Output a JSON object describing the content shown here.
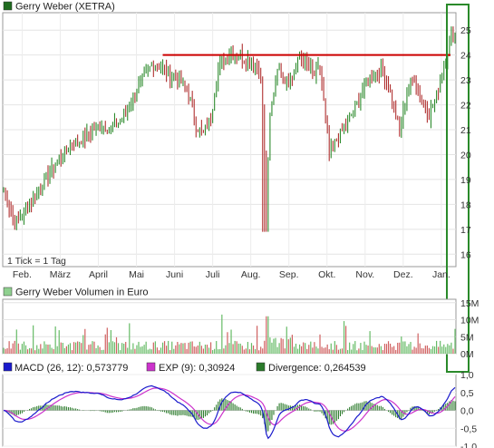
{
  "chart_data": [
    {
      "type": "candlestick",
      "title": "Gerry Weber (XETRA)",
      "legend_swatch_color": "#1f6b1f",
      "note": "1 Tick = 1 Tag",
      "months": [
        "Feb.",
        "März",
        "April",
        "Mai",
        "Juni",
        "Juli",
        "Aug.",
        "Sep.",
        "Okt.",
        "Nov.",
        "Dez.",
        "Jan."
      ],
      "y_ticks": [
        16,
        17,
        18,
        19,
        20,
        21,
        22,
        23,
        24,
        25
      ],
      "ylim": [
        15.5,
        25.7
      ],
      "resistance_level": 24.0,
      "colors": {
        "up": "#2e8b2e",
        "down": "#b03030",
        "resistance": "#cc0000",
        "highlight": "#2a8a2a"
      },
      "anchors": [
        [
          0,
          18.6
        ],
        [
          6,
          17.2
        ],
        [
          12,
          17.8
        ],
        [
          20,
          18.7
        ],
        [
          28,
          19.6
        ],
        [
          36,
          20.4
        ],
        [
          44,
          20.7
        ],
        [
          52,
          21.2
        ],
        [
          58,
          21.0
        ],
        [
          64,
          21.4
        ],
        [
          72,
          22.6
        ],
        [
          80,
          23.6
        ],
        [
          86,
          23.5
        ],
        [
          90,
          23.2
        ],
        [
          96,
          22.9
        ],
        [
          100,
          22.4
        ],
        [
          104,
          21.2
        ],
        [
          108,
          20.8
        ],
        [
          112,
          21.5
        ],
        [
          116,
          23.5
        ],
        [
          122,
          24.1
        ],
        [
          128,
          24.0
        ],
        [
          134,
          23.7
        ],
        [
          138,
          23.5
        ],
        [
          140,
          22.0
        ],
        [
          142,
          17.8
        ],
        [
          144,
          21.5
        ],
        [
          148,
          23.6
        ],
        [
          152,
          23.0
        ],
        [
          156,
          23.1
        ],
        [
          160,
          23.9
        ],
        [
          164,
          23.6
        ],
        [
          168,
          23.2
        ],
        [
          171,
          23.5
        ],
        [
          176,
          20.0
        ],
        [
          180,
          20.6
        ],
        [
          186,
          21.3
        ],
        [
          192,
          22.2
        ],
        [
          196,
          23.0
        ],
        [
          200,
          23.2
        ],
        [
          204,
          23.4
        ],
        [
          208,
          22.7
        ],
        [
          212,
          21.6
        ],
        [
          214,
          20.9
        ],
        [
          218,
          22.6
        ],
        [
          222,
          23.1
        ],
        [
          226,
          22.2
        ],
        [
          230,
          21.6
        ],
        [
          234,
          22.4
        ],
        [
          238,
          23.6
        ],
        [
          242,
          24.8
        ]
      ]
    },
    {
      "type": "bar",
      "title": "Gerry Weber Volumen in Euro",
      "legend_swatch_color": "#8fd08f",
      "y_ticks": [
        "15M",
        "10M",
        "5M",
        "0M"
      ],
      "tick_values": [
        15,
        10,
        5,
        0
      ],
      "ylim": [
        0,
        16
      ]
    },
    {
      "type": "line",
      "series": [
        {
          "name": "MACD (26, 12): 0,573779",
          "color": "#1a1acc"
        },
        {
          "name": "EXP (9): 0,30924",
          "color": "#cc33cc"
        },
        {
          "name": "Divergence: 0,264539",
          "color": "#2a7a2a"
        }
      ],
      "y_ticks": [
        "1,0",
        "0,5",
        "0,0",
        "-0,5",
        "-1,0"
      ],
      "tick_values": [
        1.0,
        0.5,
        0.0,
        -0.5,
        -1.0
      ],
      "ylim": [
        -1.0,
        1.0
      ]
    }
  ]
}
